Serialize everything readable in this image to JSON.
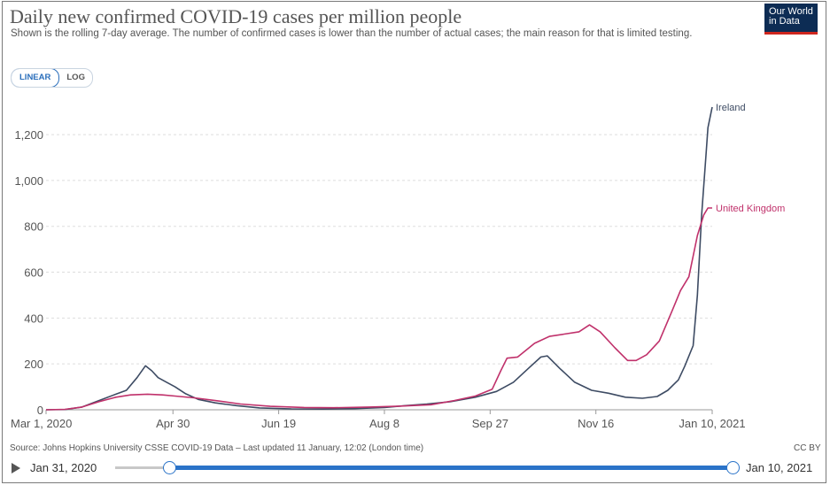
{
  "header": {
    "title": "Daily new confirmed COVID-19 cases per million people",
    "subtitle": "Shown is the rolling 7-day average. The number of confirmed cases is lower than the number of actual cases; the main reason for that is limited testing.",
    "logo_line1": "Our World",
    "logo_line2": "in Data"
  },
  "controls": {
    "linear_label": "LINEAR",
    "log_label": "LOG",
    "selected_scale": "linear"
  },
  "footer": {
    "source": "Source: Johns Hopkins University CSSE COVID-19 Data – Last updated 11 January, 12:02 (London time)",
    "license": "CC BY"
  },
  "timeline": {
    "start_label": "Jan 31, 2020",
    "end_label": "Jan 10, 2021"
  },
  "chart_data": {
    "type": "line",
    "title": "Daily new confirmed COVID-19 cases per million people",
    "xlabel": "",
    "ylabel": "",
    "x_tick_labels": [
      "Mar 1, 2020",
      "Apr 30",
      "Jun 19",
      "Aug 8",
      "Sep 27",
      "Nov 16",
      "Jan 10, 2021"
    ],
    "y_ticks": [
      "0",
      "200",
      "400",
      "600",
      "800",
      "1,000",
      "1,200"
    ],
    "y_tick_values": [
      0,
      200,
      400,
      600,
      800,
      1000,
      1200
    ],
    "xlim": [
      "2020-03-01",
      "2021-01-10"
    ],
    "ylim": [
      0,
      1320
    ],
    "grid": "horizontal dashed",
    "legend": "end-of-line labels",
    "series": [
      {
        "name": "Ireland",
        "color": "#3d4b63",
        "points": [
          [
            "2020-03-01",
            0
          ],
          [
            "2020-03-10",
            1
          ],
          [
            "2020-03-18",
            12
          ],
          [
            "2020-03-26",
            40
          ],
          [
            "2020-04-03",
            68
          ],
          [
            "2020-04-08",
            85
          ],
          [
            "2020-04-13",
            140
          ],
          [
            "2020-04-17",
            192
          ],
          [
            "2020-04-20",
            170
          ],
          [
            "2020-04-23",
            140
          ],
          [
            "2020-04-27",
            120
          ],
          [
            "2020-05-01",
            100
          ],
          [
            "2020-05-06",
            70
          ],
          [
            "2020-05-12",
            45
          ],
          [
            "2020-05-20",
            30
          ],
          [
            "2020-05-30",
            18
          ],
          [
            "2020-06-10",
            8
          ],
          [
            "2020-06-25",
            4
          ],
          [
            "2020-07-10",
            3
          ],
          [
            "2020-07-25",
            5
          ],
          [
            "2020-08-08",
            10
          ],
          [
            "2020-08-18",
            18
          ],
          [
            "2020-08-28",
            25
          ],
          [
            "2020-09-08",
            35
          ],
          [
            "2020-09-20",
            55
          ],
          [
            "2020-09-30",
            80
          ],
          [
            "2020-10-08",
            120
          ],
          [
            "2020-10-15",
            180
          ],
          [
            "2020-10-21",
            230
          ],
          [
            "2020-10-24",
            235
          ],
          [
            "2020-10-30",
            180
          ],
          [
            "2020-11-06",
            120
          ],
          [
            "2020-11-14",
            85
          ],
          [
            "2020-11-22",
            72
          ],
          [
            "2020-11-30",
            55
          ],
          [
            "2020-12-08",
            50
          ],
          [
            "2020-12-15",
            58
          ],
          [
            "2020-12-20",
            85
          ],
          [
            "2020-12-25",
            130
          ],
          [
            "2020-12-28",
            190
          ],
          [
            "2021-01-01",
            280
          ],
          [
            "2021-01-03",
            500
          ],
          [
            "2021-01-05",
            850
          ],
          [
            "2021-01-07",
            1100
          ],
          [
            "2021-01-08",
            1230
          ],
          [
            "2021-01-10",
            1320
          ]
        ]
      },
      {
        "name": "United Kingdom",
        "color": "#c0316b",
        "points": [
          [
            "2020-03-01",
            0
          ],
          [
            "2020-03-10",
            2
          ],
          [
            "2020-03-18",
            12
          ],
          [
            "2020-03-26",
            35
          ],
          [
            "2020-04-03",
            55
          ],
          [
            "2020-04-10",
            65
          ],
          [
            "2020-04-18",
            68
          ],
          [
            "2020-04-25",
            65
          ],
          [
            "2020-05-01",
            60
          ],
          [
            "2020-05-10",
            52
          ],
          [
            "2020-05-20",
            40
          ],
          [
            "2020-06-01",
            25
          ],
          [
            "2020-06-15",
            15
          ],
          [
            "2020-07-01",
            10
          ],
          [
            "2020-07-15",
            9
          ],
          [
            "2020-08-01",
            12
          ],
          [
            "2020-08-15",
            16
          ],
          [
            "2020-08-30",
            22
          ],
          [
            "2020-09-10",
            40
          ],
          [
            "2020-09-20",
            60
          ],
          [
            "2020-09-28",
            90
          ],
          [
            "2020-10-02",
            170
          ],
          [
            "2020-10-05",
            225
          ],
          [
            "2020-10-10",
            230
          ],
          [
            "2020-10-18",
            290
          ],
          [
            "2020-10-25",
            320
          ],
          [
            "2020-11-01",
            330
          ],
          [
            "2020-11-08",
            340
          ],
          [
            "2020-11-13",
            370
          ],
          [
            "2020-11-18",
            340
          ],
          [
            "2020-11-25",
            270
          ],
          [
            "2020-12-01",
            215
          ],
          [
            "2020-12-05",
            215
          ],
          [
            "2020-12-10",
            240
          ],
          [
            "2020-12-16",
            300
          ],
          [
            "2020-12-22",
            430
          ],
          [
            "2020-12-26",
            520
          ],
          [
            "2020-12-30",
            580
          ],
          [
            "2021-01-03",
            760
          ],
          [
            "2021-01-06",
            850
          ],
          [
            "2021-01-08",
            880
          ],
          [
            "2021-01-10",
            880
          ]
        ]
      }
    ]
  }
}
